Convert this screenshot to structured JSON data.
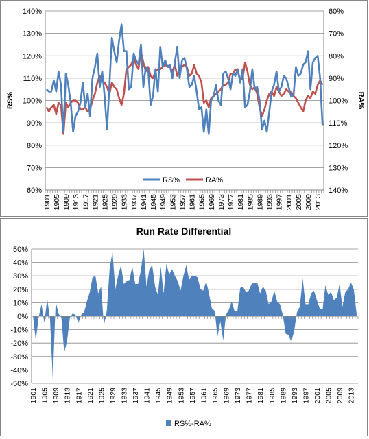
{
  "colors": {
    "rs": "#4F81BD",
    "ra": "#C0504D",
    "area": "#4F81BD",
    "grid": "#878787",
    "axis": "#878787",
    "text": "#000000"
  },
  "x_tick_labels": [
    "1901",
    "1905",
    "1909",
    "1913",
    "1917",
    "1921",
    "1925",
    "1929",
    "1933",
    "1937",
    "1941",
    "1945",
    "1949",
    "1953",
    "1957",
    "1961",
    "1965",
    "1969",
    "1973",
    "1977",
    "1981",
    "1985",
    "1989",
    "1993",
    "1997",
    "2001",
    "2005",
    "2009",
    "2013"
  ],
  "chart_data": [
    {
      "type": "line",
      "title": "",
      "xlabel": "",
      "ylabel": "RS%",
      "y2label": "RA%",
      "ylim": [
        0.6,
        1.4
      ],
      "y2lim": [
        0.6,
        1.4
      ],
      "y2_inverted": true,
      "y_ticks": [
        "60%",
        "70%",
        "80%",
        "90%",
        "100%",
        "110%",
        "120%",
        "130%",
        "140%"
      ],
      "y2_ticks": [
        "60%",
        "70%",
        "80%",
        "90%",
        "100%",
        "110%",
        "120%",
        "130%",
        "140%"
      ],
      "grid": "horizontal",
      "legend_position": "bottom",
      "x_start": 1901,
      "x_end": 2013,
      "series": [
        {
          "name": "RS%",
          "axis": "left",
          "values": [
            1.05,
            1.04,
            1.04,
            1.09,
            1.04,
            1.13,
            1.07,
            0.86,
            1.12,
            1.07,
            0.99,
            0.86,
            0.93,
            0.95,
            0.99,
            1.08,
            0.97,
            1.03,
            0.93,
            1.1,
            1.15,
            1.21,
            1.06,
            1.13,
            1.02,
            0.87,
            1.07,
            1.28,
            1.22,
            1.17,
            1.27,
            1.34,
            1.22,
            1.22,
            1.05,
            1.06,
            1.21,
            1.18,
            1.16,
            1.25,
            1.06,
            1.15,
            1.14,
            0.98,
            1.02,
            1.14,
            1.04,
            1.24,
            1.15,
            1.18,
            1.15,
            1.16,
            1.1,
            1.17,
            1.24,
            1.1,
            1.18,
            1.19,
            1.14,
            1.06,
            1.07,
            1.11,
            1.04,
            0.96,
            0.97,
            0.86,
            0.96,
            0.85,
            1.0,
            1.02,
            1.07,
            1.0,
            0.98,
            1.12,
            1.13,
            1.1,
            1.05,
            1.12,
            1.11,
            1.14,
            1.08,
            1.14,
            0.97,
            0.98,
            1.04,
            1.14,
            1.05,
            1.06,
            1.0,
            0.87,
            0.91,
            0.86,
            0.95,
            1.04,
            1.07,
            1.13,
            1.04,
            1.06,
            1.11,
            1.1,
            1.06,
            1.02,
            1.02,
            1.15,
            1.11,
            1.12,
            1.16,
            1.17,
            1.22,
            1.05,
            1.17,
            1.19,
            1.2,
            1.1,
            0.89
          ]
        },
        {
          "name": "RA%",
          "axis": "right",
          "inverted": true,
          "values": [
            1.03,
            1.05,
            1.03,
            1.02,
            1.06,
            1.01,
            1.02,
            1.15,
            1.01,
            1.03,
            1.01,
            1.0,
            1.0,
            1.01,
            1.04,
            1.04,
            1.03,
            1.05,
            1.04,
            1.0,
            0.97,
            0.92,
            0.89,
            0.91,
            0.92,
            0.94,
            0.97,
            0.92,
            0.94,
            0.95,
            0.99,
            1.02,
            0.97,
            0.86,
            0.85,
            0.84,
            0.81,
            0.84,
            0.86,
            0.78,
            0.83,
            0.87,
            0.85,
            0.89,
            0.9,
            0.87,
            0.86,
            0.86,
            0.85,
            0.84,
            0.85,
            0.85,
            0.87,
            0.84,
            0.89,
            0.86,
            0.85,
            0.84,
            0.85,
            0.89,
            0.88,
            0.84,
            0.88,
            0.89,
            0.92,
            1.01,
            1.0,
            1.03,
            0.99,
            0.98,
            0.97,
            0.96,
            0.95,
            0.93,
            0.93,
            0.92,
            0.88,
            0.88,
            0.86,
            0.87,
            0.91,
            0.9,
            0.83,
            0.87,
            0.93,
            0.95,
            0.94,
            0.97,
            1.03,
            1.07,
            1.04,
            1.0,
            0.97,
            0.96,
            0.98,
            0.94,
            0.96,
            0.98,
            0.97,
            0.95,
            0.96,
            0.96,
            0.98,
            0.99,
            1.01,
            1.03,
            1.05,
            1.0,
            0.98,
            0.99,
            0.96,
            0.97,
            0.93,
            0.91,
            0.93
          ]
        }
      ]
    },
    {
      "type": "area",
      "title": "Run Rate Differential",
      "xlabel": "",
      "ylabel": "",
      "ylim": [
        -0.5,
        0.5
      ],
      "y_ticks": [
        "-50%",
        "-40%",
        "-30%",
        "-20%",
        "-10%",
        "0%",
        "10%",
        "20%",
        "30%",
        "40%",
        "50%"
      ],
      "grid": "horizontal",
      "legend_position": "bottom",
      "x_start": 1901,
      "x_end": 2013,
      "series": [
        {
          "name": "RS%-RA%",
          "values": [
            0.0,
            -0.18,
            -0.01,
            0.09,
            -0.05,
            0.13,
            -0.02,
            -0.47,
            0.11,
            0.02,
            -0.01,
            -0.27,
            -0.19,
            -0.01,
            0.02,
            0.01,
            -0.05,
            0.01,
            0.03,
            0.11,
            0.18,
            0.29,
            0.3,
            0.17,
            0.22,
            -0.07,
            0.04,
            0.35,
            0.48,
            0.2,
            0.3,
            0.38,
            0.24,
            0.26,
            0.27,
            0.37,
            0.24,
            0.24,
            0.34,
            0.5,
            0.22,
            0.35,
            0.38,
            0.22,
            0.16,
            0.37,
            0.17,
            0.39,
            0.31,
            0.35,
            0.3,
            0.26,
            0.19,
            0.3,
            0.38,
            0.27,
            0.3,
            0.3,
            0.29,
            0.2,
            0.19,
            0.26,
            0.17,
            0.06,
            0.04,
            -0.15,
            -0.04,
            -0.18,
            0.01,
            0.05,
            0.11,
            0.04,
            0.04,
            0.21,
            0.22,
            0.18,
            0.19,
            0.24,
            0.25,
            0.25,
            0.17,
            0.22,
            0.19,
            0.09,
            0.11,
            0.19,
            0.11,
            0.09,
            0.01,
            -0.13,
            -0.14,
            -0.19,
            -0.11,
            0.03,
            0.07,
            0.28,
            0.09,
            0.09,
            0.17,
            0.19,
            0.12,
            0.06,
            0.05,
            0.23,
            0.16,
            0.18,
            0.12,
            0.14,
            0.24,
            0.07,
            0.18,
            0.2,
            0.25,
            0.2,
            0.02
          ]
        }
      ]
    }
  ]
}
